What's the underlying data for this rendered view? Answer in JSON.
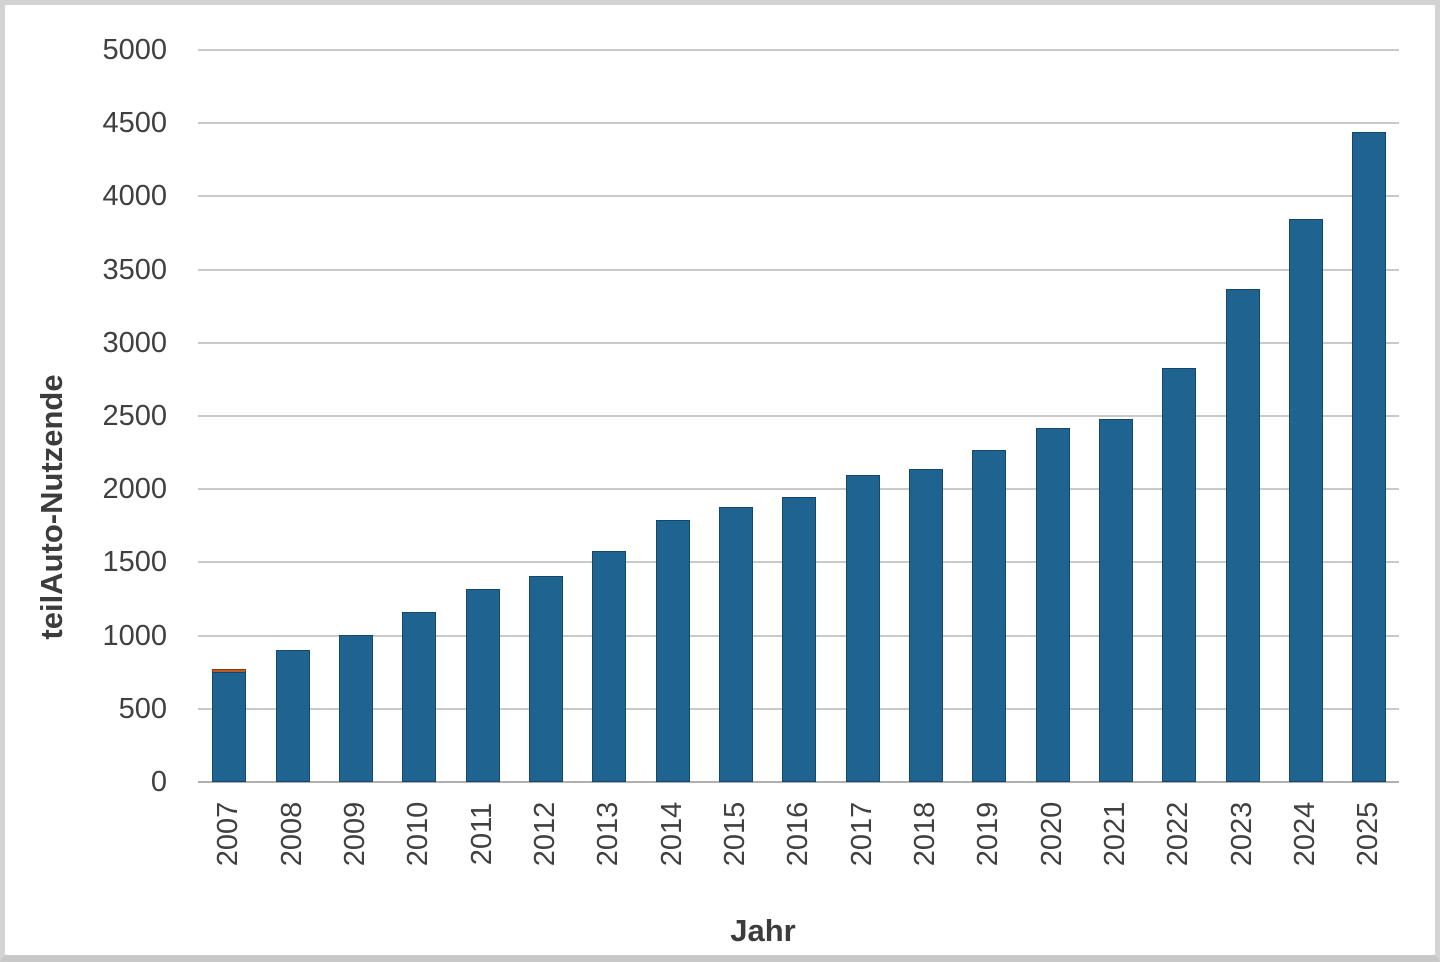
{
  "chart_data": {
    "type": "bar",
    "title": "",
    "xlabel": "Jahr",
    "ylabel": "teilAuto-Nutzende",
    "categories": [
      "2007",
      "2008",
      "2009",
      "2010",
      "2011",
      "2012",
      "2013",
      "2014",
      "2015",
      "2016",
      "2017",
      "2018",
      "2019",
      "2020",
      "2021",
      "2022",
      "2023",
      "2024",
      "2025"
    ],
    "series": [
      {
        "name": "blue",
        "color": "#1f6391",
        "values": [
          755,
          905,
          1005,
          1160,
          1315,
          1405,
          1580,
          1790,
          1880,
          1950,
          2095,
          2135,
          2265,
          2415,
          2480,
          2825,
          3370,
          3845,
          4440
        ]
      },
      {
        "name": "orange",
        "color": "#bc5b22",
        "values": [
          20,
          0,
          0,
          0,
          0,
          0,
          0,
          0,
          0,
          0,
          0,
          0,
          0,
          0,
          0,
          0,
          0,
          0,
          0
        ]
      }
    ],
    "ylim": [
      0,
      5000
    ],
    "yticks": [
      0,
      500,
      1000,
      1500,
      2000,
      2500,
      3000,
      3500,
      4000,
      4500,
      5000
    ],
    "grid": true,
    "legend": false
  },
  "colors": {
    "bar_fill": "#1f6391",
    "bar_edge": "#15476b",
    "orange_segment": "#bc5b22",
    "gridline": "#c9c9c9",
    "axis_text": "#404040",
    "frame_border": "#d3d3d3"
  }
}
